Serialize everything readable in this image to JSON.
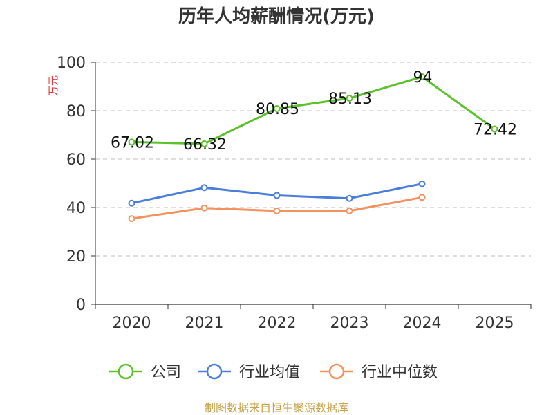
{
  "chart_data": {
    "type": "line",
    "title": "历年人均薪酬情况(万元)",
    "ylabel": "万元",
    "xlabel": "",
    "categories": [
      "2020",
      "2021",
      "2022",
      "2023",
      "2024",
      "2025"
    ],
    "ylim": [
      0,
      100
    ],
    "yticks": [
      0,
      20,
      40,
      60,
      80,
      100
    ],
    "grid": true,
    "legend_position": "bottom",
    "series": [
      {
        "name": "公司",
        "color": "#5cc22b",
        "values": [
          67.02,
          66.32,
          80.85,
          85.13,
          94,
          72.42
        ],
        "labels": [
          "67.02",
          "66.32",
          "80.85",
          "85.13",
          "94",
          "72.42"
        ]
      },
      {
        "name": "行业均值",
        "color": "#4a7edb",
        "values": [
          41.8,
          48.2,
          45.0,
          43.8,
          49.8,
          null
        ]
      },
      {
        "name": "行业中位数",
        "color": "#f5915e",
        "values": [
          35.4,
          39.8,
          38.6,
          38.6,
          44.2,
          null
        ]
      }
    ]
  },
  "source": "制图数据来自恒生聚源数据库"
}
